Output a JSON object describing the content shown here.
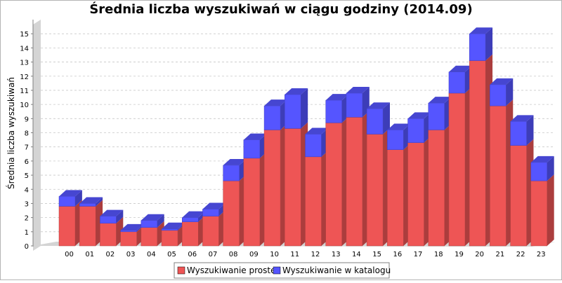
{
  "chart_data": {
    "type": "bar",
    "stacked": true,
    "three_d": true,
    "title": "Średnia liczba wyszukiwań w ciągu godziny (2014.09)",
    "ylabel": "Średnia liczba wyszukiwań",
    "xlabel": "",
    "ylim": [
      0,
      16
    ],
    "yticks": [
      "0",
      "1",
      "2",
      "3",
      "4",
      "5",
      "6",
      "7",
      "8",
      "9",
      "10",
      "11",
      "12",
      "13",
      "14",
      "15"
    ],
    "grid": true,
    "legend_position": "bottom",
    "categories": [
      "00",
      "01",
      "02",
      "03",
      "04",
      "05",
      "06",
      "07",
      "08",
      "09",
      "10",
      "11",
      "12",
      "13",
      "14",
      "15",
      "16",
      "17",
      "18",
      "19",
      "20",
      "21",
      "22",
      "23"
    ],
    "series": [
      {
        "name": "Wyszukiwanie proste",
        "color": "#ee5555",
        "values": [
          2.8,
          2.8,
          1.6,
          1.0,
          1.3,
          1.1,
          1.7,
          2.1,
          4.6,
          6.2,
          8.2,
          8.3,
          6.3,
          8.7,
          9.1,
          7.9,
          6.8,
          7.3,
          8.2,
          10.8,
          13.1,
          9.9,
          7.1,
          4.6
        ]
      },
      {
        "name": "Wyszukiwanie w katalogu",
        "color": "#5555ff",
        "values": [
          0.7,
          0.2,
          0.5,
          0.1,
          0.5,
          0.1,
          0.3,
          0.5,
          1.1,
          1.3,
          1.7,
          2.4,
          1.6,
          1.6,
          1.7,
          1.8,
          1.4,
          1.7,
          1.9,
          1.5,
          1.9,
          1.5,
          1.7,
          1.3
        ]
      }
    ]
  }
}
